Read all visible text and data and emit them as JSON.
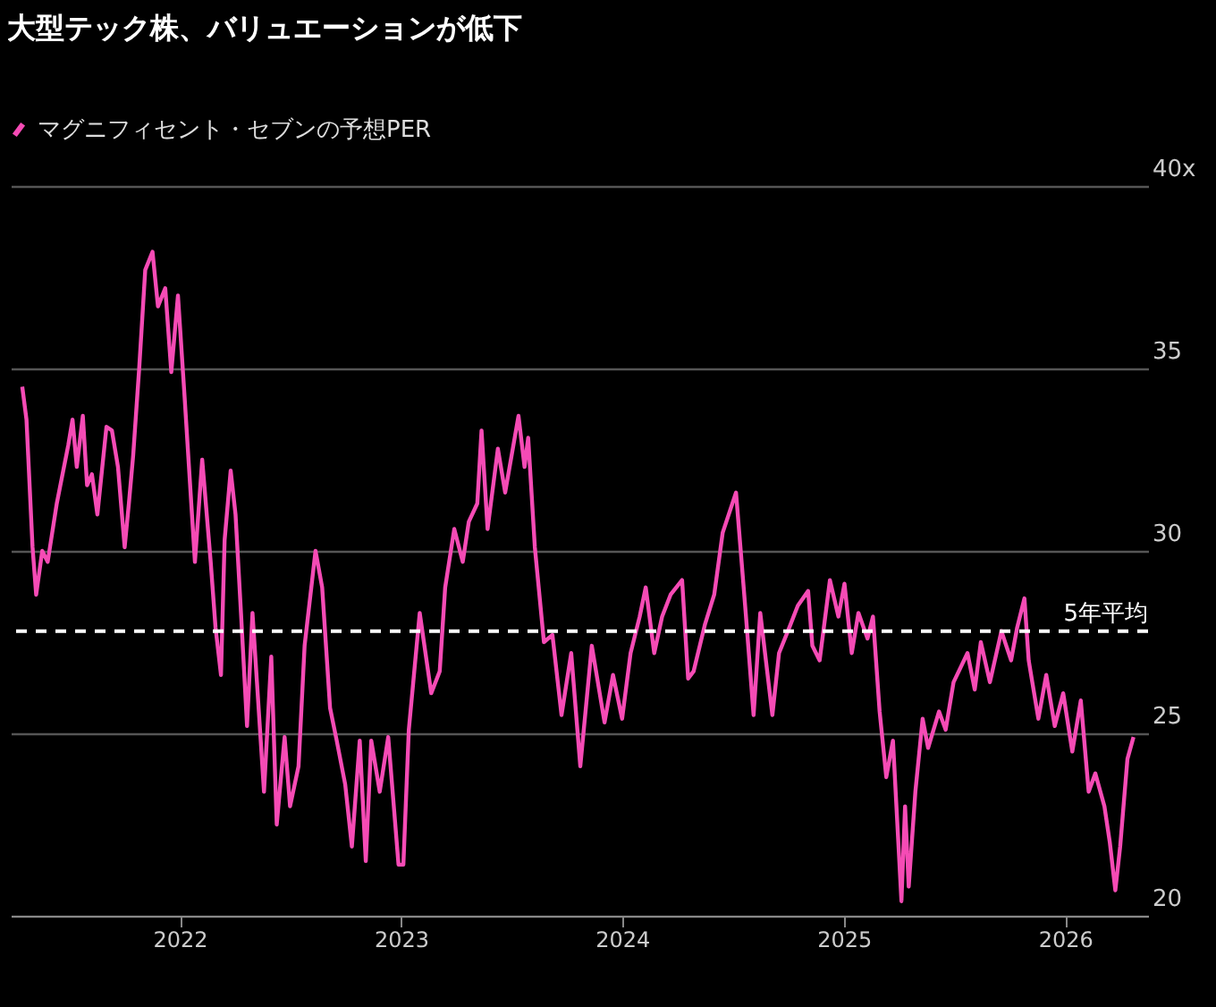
{
  "chart_data": {
    "type": "line",
    "title": "大型テック株、バリュエーションが低下",
    "legend": "top left",
    "grid": "y",
    "marker": "none",
    "line_style": "solid",
    "xlim": [
      "2021-03-28",
      "2026-05-18"
    ],
    "xticks": [
      "2022",
      "2023",
      "2024",
      "2025",
      "2026"
    ],
    "ylim": [
      20,
      40
    ],
    "yticks": [
      20,
      25,
      30,
      35,
      {
        "value": 40,
        "label": "40x"
      }
    ],
    "ref_lines": [
      {
        "axis": "y",
        "value": 27.8,
        "label": "5年平均",
        "color": "#ffffff",
        "line_style": "dashed"
      }
    ],
    "x": [
      "2021-04-16",
      "2021-04-23",
      "2021-05-03",
      "2021-05-09",
      "2021-05-19",
      "2021-05-28",
      "2021-06-12",
      "2021-07-01",
      "2021-07-08",
      "2021-07-15",
      "2021-07-25",
      "2021-08-01",
      "2021-08-09",
      "2021-08-18",
      "2021-09-02",
      "2021-09-11",
      "2021-09-21",
      "2021-10-02",
      "2021-10-09",
      "2021-10-16",
      "2021-10-26",
      "2021-11-05",
      "2021-11-17",
      "2021-11-26",
      "2021-12-08",
      "2021-12-18",
      "2021-12-29",
      "2022-01-09",
      "2022-01-26",
      "2022-02-07",
      "2022-02-21",
      "2022-03-01",
      "2022-03-10",
      "2022-03-16",
      "2022-03-26",
      "2022-04-03",
      "2022-04-12",
      "2022-04-22",
      "2022-05-01",
      "2022-05-20",
      "2022-06-01",
      "2022-06-10",
      "2022-06-23",
      "2022-07-02",
      "2022-07-16",
      "2022-07-26",
      "2022-08-13",
      "2022-08-24",
      "2022-09-06",
      "2022-09-17",
      "2022-10-01",
      "2022-10-12",
      "2022-10-25",
      "2022-11-04",
      "2022-11-13",
      "2022-11-27",
      "2022-12-11",
      "2022-12-28",
      "2023-01-05",
      "2023-01-14",
      "2023-02-01",
      "2023-02-20",
      "2023-03-06",
      "2023-03-15",
      "2023-03-30",
      "2023-04-13",
      "2023-04-23",
      "2023-05-07",
      "2023-05-14",
      "2023-05-24",
      "2023-06-10",
      "2023-06-22",
      "2023-07-14",
      "2023-07-24",
      "2023-07-30",
      "2023-08-10",
      "2023-08-25",
      "2023-09-08",
      "2023-09-23",
      "2023-10-09",
      "2023-10-24",
      "2023-11-12",
      "2023-12-03",
      "2023-12-17",
      "2024-01-01",
      "2024-01-15",
      "2024-01-30",
      "2024-02-09",
      "2024-02-23",
      "2024-03-07",
      "2024-03-21",
      "2024-04-09",
      "2024-04-19",
      "2024-04-28",
      "2024-05-17",
      "2024-06-01",
      "2024-06-15",
      "2024-07-07",
      "2024-07-23",
      "2024-08-05",
      "2024-08-16",
      "2024-09-05",
      "2024-09-16",
      "2024-10-03",
      "2024-10-17",
      "2024-11-03",
      "2024-11-10",
      "2024-11-22",
      "2024-12-09",
      "2024-12-23",
      "2025-01-02",
      "2025-01-14",
      "2025-01-25",
      "2025-02-09",
      "2025-02-18",
      "2025-03-01",
      "2025-03-12",
      "2025-03-23",
      "2025-04-06",
      "2025-04-12",
      "2025-04-18",
      "2025-04-29",
      "2025-05-11",
      "2025-05-20",
      "2025-06-07",
      "2025-06-18",
      "2025-07-01",
      "2025-07-24",
      "2025-08-05",
      "2025-08-15",
      "2025-08-30",
      "2025-09-18",
      "2025-10-04",
      "2025-10-14",
      "2025-10-26",
      "2025-11-02",
      "2025-11-18",
      "2025-12-01",
      "2025-12-15",
      "2025-12-29",
      "2026-01-13",
      "2026-01-27",
      "2026-02-09",
      "2026-02-20",
      "2026-03-07",
      "2026-03-16",
      "2026-03-25",
      "2026-04-02",
      "2026-04-14",
      "2026-04-24"
    ],
    "series": [
      {
        "name": "マグニフィセント・セブンの予想PER",
        "color": "#f54bb5",
        "values": [
          34.5,
          33.6,
          30.1,
          28.8,
          30.0,
          29.7,
          31.3,
          32.9,
          33.6,
          32.3,
          33.7,
          31.8,
          32.1,
          31.0,
          33.4,
          33.3,
          32.3,
          30.1,
          31.3,
          32.6,
          35.0,
          37.7,
          38.2,
          36.7,
          37.2,
          34.9,
          37.0,
          34.2,
          29.7,
          32.5,
          29.7,
          27.9,
          26.6,
          30.3,
          32.2,
          31.0,
          28.3,
          25.2,
          28.3,
          23.4,
          27.1,
          22.5,
          24.9,
          23.0,
          24.1,
          27.4,
          30.0,
          29.0,
          25.7,
          24.8,
          23.6,
          21.9,
          24.8,
          21.5,
          24.8,
          23.4,
          24.9,
          21.4,
          21.4,
          25.1,
          28.3,
          26.1,
          26.7,
          29.0,
          30.6,
          29.7,
          30.8,
          31.3,
          33.3,
          30.6,
          32.8,
          31.6,
          33.7,
          32.3,
          33.1,
          30.1,
          27.5,
          27.7,
          25.5,
          27.2,
          24.1,
          27.4,
          25.3,
          26.6,
          25.4,
          27.2,
          28.2,
          29.0,
          27.2,
          28.2,
          28.8,
          29.2,
          26.5,
          26.7,
          28.0,
          28.8,
          30.5,
          31.6,
          28.3,
          25.5,
          28.3,
          25.5,
          27.2,
          27.9,
          28.5,
          28.9,
          27.4,
          27.0,
          29.2,
          28.2,
          29.1,
          27.2,
          28.3,
          27.6,
          28.2,
          25.6,
          23.8,
          24.8,
          20.4,
          23.0,
          20.8,
          23.4,
          25.4,
          24.6,
          25.6,
          25.1,
          26.4,
          27.2,
          26.2,
          27.5,
          26.4,
          27.8,
          27.0,
          27.9,
          28.7,
          27.0,
          25.4,
          26.6,
          25.2,
          26.1,
          24.5,
          25.9,
          23.4,
          23.9,
          23.0,
          22.0,
          20.7,
          21.9,
          24.3,
          24.9
        ]
      }
    ]
  }
}
